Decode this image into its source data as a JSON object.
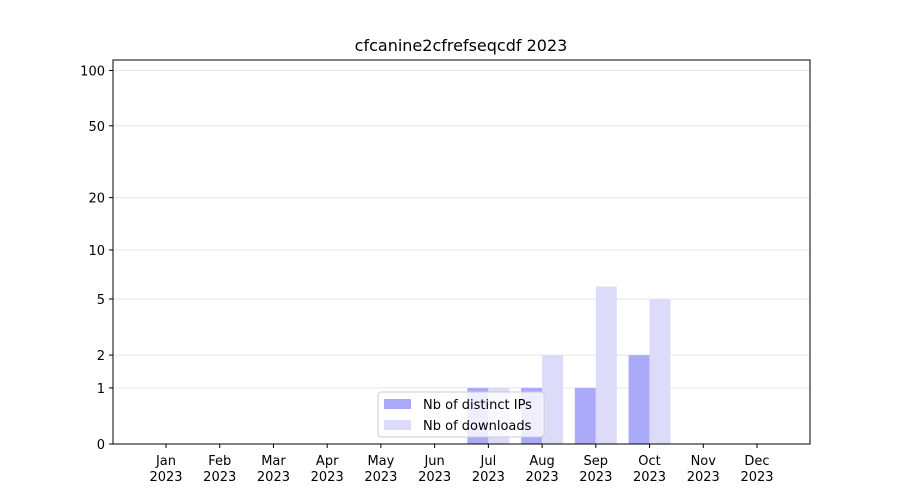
{
  "chart_data": {
    "type": "bar",
    "title": "cfcanine2cfrefseqcdf 2023",
    "categories": [
      "Jan 2023",
      "Feb 2023",
      "Mar 2023",
      "Apr 2023",
      "May 2023",
      "Jun 2023",
      "Jul 2023",
      "Aug 2023",
      "Sep 2023",
      "Oct 2023",
      "Nov 2023",
      "Dec 2023"
    ],
    "series": [
      {
        "name": "Nb of distinct IPs",
        "color": "#aaaaf8",
        "values": [
          0,
          0,
          0,
          0,
          0,
          0,
          1,
          1,
          1,
          2,
          0,
          0
        ]
      },
      {
        "name": "Nb of downloads",
        "color": "#dcdcfa",
        "values": [
          0,
          0,
          0,
          0,
          0,
          0,
          1,
          2,
          6,
          5,
          0,
          0
        ]
      }
    ],
    "yscale": "log1p",
    "ylim": [
      0,
      114
    ],
    "yticks": [
      0,
      1,
      2,
      5,
      10,
      20,
      50,
      100
    ],
    "grid": true,
    "legend": "lower center"
  }
}
